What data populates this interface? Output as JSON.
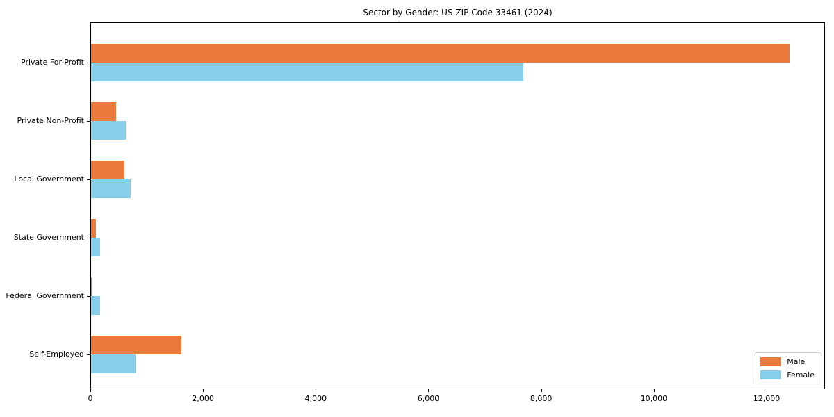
{
  "figure": {
    "background": "#ffffff"
  },
  "chart_data": {
    "type": "bar",
    "orientation": "horizontal",
    "title": "Sector by Gender: US ZIP Code 33461 (2024)",
    "xlabel": "",
    "ylabel": "",
    "categories": [
      "Private For-Profit",
      "Private Non-Profit",
      "Local Government",
      "State Government",
      "Federal Government",
      "Self-Employed"
    ],
    "series": [
      {
        "name": "Male",
        "color": "#EB7A3C",
        "values": [
          12400,
          445,
          595,
          85,
          15,
          1600
        ]
      },
      {
        "name": "Female",
        "color": "#87CEEB",
        "values": [
          7670,
          615,
          700,
          165,
          155,
          790
        ]
      }
    ],
    "xlim": [
      0,
      13036
    ],
    "xticks": [
      {
        "value": 0,
        "label": "0"
      },
      {
        "value": 2000,
        "label": "2,000"
      },
      {
        "value": 4000,
        "label": "4,000"
      },
      {
        "value": 6000,
        "label": "6,000"
      },
      {
        "value": 8000,
        "label": "8,000"
      },
      {
        "value": 10000,
        "label": "10,000"
      },
      {
        "value": 12000,
        "label": "12,000"
      }
    ],
    "grid": false,
    "legend": {
      "position": "lower right",
      "entries": [
        "Male",
        "Female"
      ]
    }
  }
}
